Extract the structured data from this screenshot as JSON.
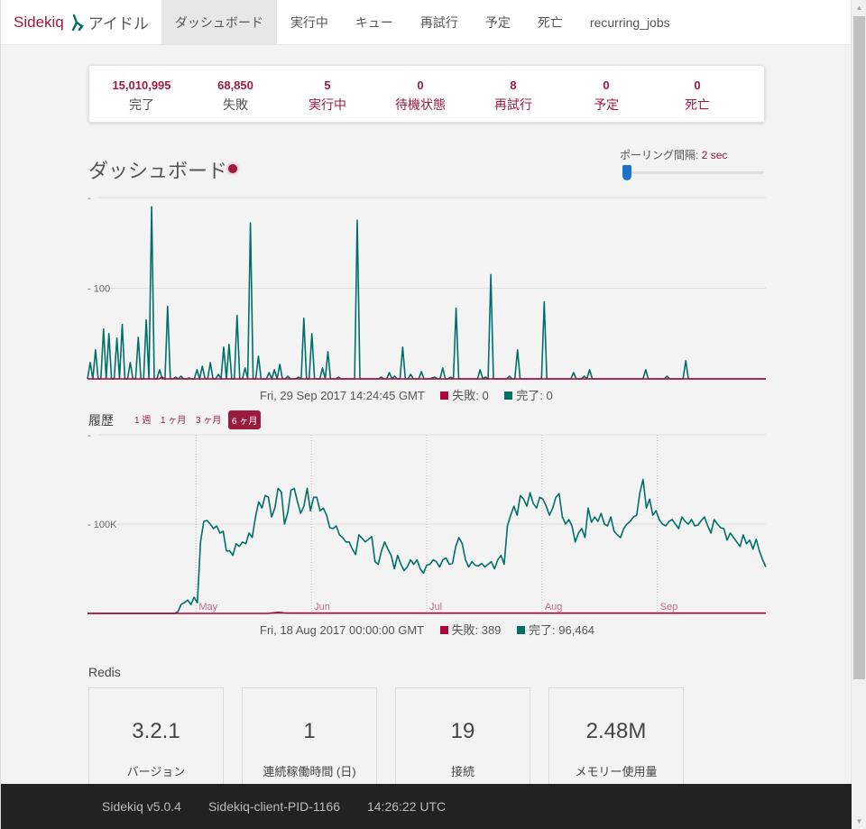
{
  "navbar": {
    "brand": "Sidekiq",
    "status": "アイドル",
    "items": [
      {
        "label": "ダッシュボード",
        "active": true
      },
      {
        "label": "実行中"
      },
      {
        "label": "キュー"
      },
      {
        "label": "再試行"
      },
      {
        "label": "予定"
      },
      {
        "label": "死亡"
      },
      {
        "label": "recurring_jobs"
      }
    ]
  },
  "summary": [
    {
      "value": "15,010,995",
      "label": "完了"
    },
    {
      "value": "68,850",
      "label": "失敗"
    },
    {
      "value": "5",
      "label": "実行中"
    },
    {
      "value": "0",
      "label": "待機状態"
    },
    {
      "value": "8",
      "label": "再試行"
    },
    {
      "value": "0",
      "label": "予定"
    },
    {
      "value": "0",
      "label": "死亡"
    }
  ],
  "dashboard": {
    "title": "ダッシュボード",
    "poll_label": "ポーリング間隔:",
    "poll_value": "2 sec",
    "poll_fraction": 0.0
  },
  "realtime_legend": {
    "time": "Fri, 29 Sep 2017 14:24:45 GMT",
    "failed_label": "失敗: 0",
    "processed_label": "完了: 0"
  },
  "history": {
    "label": "履歴",
    "ranges": [
      "1 週",
      "1 ヶ月",
      "3 ヶ月",
      "6 ヶ月"
    ],
    "active_range": "6 ヶ月",
    "legend_time": "Fri, 18 Aug 2017 00:00:00 GMT",
    "failed_label": "失敗: 389",
    "processed_label": "完了: 96,464"
  },
  "colors": {
    "accent": "#9b1b3f",
    "processed": "#006f68",
    "failed": "#b1003e"
  },
  "chart_data": [
    {
      "type": "line",
      "name": "realtime",
      "ytick_labels": [
        "-",
        "- 100"
      ],
      "yticks": [
        200,
        100
      ],
      "ylim": [
        0,
        200
      ],
      "grid": true,
      "series": [
        {
          "name": "完了",
          "color": "#006f68",
          "values": [
            0,
            18,
            0,
            32,
            0,
            0,
            55,
            0,
            50,
            0,
            0,
            45,
            0,
            60,
            0,
            0,
            18,
            0,
            0,
            46,
            0,
            0,
            65,
            0,
            190,
            0,
            0,
            10,
            0,
            0,
            80,
            0,
            0,
            2,
            0,
            3,
            0,
            0,
            1,
            0,
            0,
            10,
            0,
            14,
            0,
            0,
            18,
            0,
            0,
            5,
            0,
            35,
            0,
            38,
            0,
            0,
            70,
            0,
            0,
            12,
            0,
            172,
            0,
            0,
            25,
            0,
            0,
            0,
            7,
            0,
            10,
            0,
            16,
            0,
            0,
            3,
            0,
            0,
            0,
            2,
            0,
            67,
            0,
            0,
            50,
            0,
            0,
            0,
            12,
            0,
            30,
            0,
            0,
            0,
            2,
            0,
            0,
            0,
            0,
            0,
            0,
            175,
            0,
            0,
            0,
            0,
            0,
            0,
            0,
            0,
            2,
            0,
            0,
            7,
            0,
            3,
            0,
            0,
            35,
            0,
            0,
            5,
            0,
            0,
            0,
            8,
            0,
            0,
            0,
            1,
            2,
            0,
            0,
            12,
            0,
            0,
            2,
            0,
            78,
            0,
            0,
            0,
            0,
            0,
            0,
            0,
            0,
            10,
            0,
            2,
            0,
            115,
            0,
            0,
            0,
            0,
            0,
            0,
            3,
            0,
            0,
            32,
            0,
            0,
            0,
            0,
            0,
            0,
            0,
            0,
            0,
            85,
            0,
            0,
            0,
            0,
            0,
            0,
            0,
            0,
            0,
            0,
            7,
            0,
            0,
            0,
            3,
            0,
            10,
            0,
            0,
            0,
            0,
            0,
            0,
            0,
            0,
            0,
            0,
            0,
            0,
            0,
            0,
            0,
            0,
            0,
            0,
            0,
            0,
            10,
            0,
            0,
            0,
            0,
            0,
            0,
            0,
            3,
            0,
            0,
            0,
            0,
            0,
            0,
            20,
            0,
            0,
            0,
            0,
            0,
            0,
            0,
            0,
            0,
            0,
            0,
            0,
            0,
            0,
            0,
            0,
            0,
            0,
            0,
            0,
            0,
            0,
            0,
            0,
            0,
            0,
            0,
            0,
            0,
            0
          ]
        },
        {
          "name": "失敗",
          "color": "#b1003e",
          "values": [
            0,
            0,
            0,
            0,
            0,
            0,
            0,
            0,
            0,
            0,
            0,
            0,
            0,
            0,
            0,
            0,
            0,
            0,
            0,
            0,
            0,
            0,
            0,
            0,
            0,
            0,
            0,
            0,
            2,
            0,
            0,
            0,
            0,
            0,
            0,
            0,
            0,
            0,
            0,
            0,
            0,
            0,
            0,
            0,
            0,
            0,
            0,
            0,
            0,
            0,
            0,
            0,
            0,
            0,
            0,
            0,
            0,
            0,
            0,
            0,
            0,
            0,
            0,
            0,
            0,
            0,
            0,
            0,
            0,
            0,
            0,
            0,
            0,
            0,
            0,
            0,
            0,
            0,
            0,
            0,
            0,
            0,
            0,
            0,
            0,
            0,
            0,
            0,
            0,
            0,
            0,
            0,
            0,
            0,
            0,
            0,
            0,
            0,
            0,
            0,
            0,
            0,
            0,
            0,
            0,
            0,
            0,
            0,
            0,
            0,
            0,
            0,
            0,
            0,
            0,
            0,
            0,
            0,
            0,
            0,
            0,
            0,
            0,
            0,
            0,
            0,
            0,
            0,
            0,
            0,
            0,
            0,
            0,
            0,
            0,
            0,
            0,
            0,
            0,
            0,
            0,
            0,
            0,
            0,
            0,
            0,
            0,
            0,
            0,
            0,
            0,
            0,
            0,
            0,
            0,
            0,
            0,
            0,
            0,
            0,
            0,
            0,
            0,
            0,
            0,
            0,
            0,
            0,
            0,
            0,
            0,
            0,
            0,
            0,
            0,
            0,
            0,
            0,
            0,
            0,
            0,
            0,
            0,
            0,
            0,
            0,
            0,
            0,
            0,
            0,
            0,
            0,
            0,
            0,
            0,
            0,
            0,
            0,
            0,
            0,
            0,
            0,
            0,
            0,
            0,
            0,
            0,
            0,
            0,
            0,
            0,
            0,
            0,
            0,
            0,
            0,
            0,
            0,
            0,
            0,
            0,
            0,
            0,
            0,
            0,
            0,
            0,
            0,
            0,
            0,
            0,
            0,
            0,
            0,
            0,
            0,
            0,
            0,
            0,
            0,
            0,
            0,
            0,
            0,
            0,
            0,
            0,
            0,
            0,
            0,
            0,
            0,
            0,
            0,
            0,
            0
          ]
        }
      ]
    },
    {
      "type": "line",
      "name": "history",
      "ytick_labels": [
        "-",
        "- 100K"
      ],
      "yticks": [
        200000,
        100000
      ],
      "ylim": [
        0,
        200000
      ],
      "xtick_labels": [
        "May",
        "Jun",
        "Jul",
        "Aug",
        "Sep"
      ],
      "xtick_positions": [
        0.16,
        0.33,
        0.5,
        0.67,
        0.84
      ],
      "series": [
        {
          "name": "完了",
          "color": "#006f68",
          "values": [
            0,
            0,
            0,
            0,
            0,
            0,
            0,
            0,
            0,
            0,
            0,
            0,
            0,
            0,
            0,
            0,
            0,
            0,
            0,
            0,
            0,
            0,
            0,
            0,
            0,
            0,
            0,
            0,
            2000,
            10000,
            12000,
            15000,
            10000,
            18000,
            12000,
            80000,
            103000,
            104000,
            100000,
            95000,
            98000,
            90000,
            92000,
            70000,
            70000,
            65000,
            78000,
            75000,
            80000,
            78000,
            90000,
            85000,
            108000,
            125000,
            118000,
            132000,
            130000,
            108000,
            118000,
            140000,
            136000,
            100000,
            113000,
            138000,
            140000,
            125000,
            112000,
            120000,
            140000,
            115000,
            130000,
            130000,
            115000,
            118000,
            110000,
            96000,
            95000,
            98000,
            88000,
            85000,
            80000,
            80000,
            72000,
            66000,
            88000,
            84000,
            80000,
            83000,
            86000,
            58000,
            55000,
            70000,
            80000,
            72000,
            65000,
            50000,
            65000,
            55000,
            48000,
            52000,
            60000,
            55000,
            60000,
            50000,
            45000,
            54000,
            55000,
            60000,
            58000,
            52000,
            60000,
            62000,
            55000,
            56000,
            75000,
            85000,
            78000,
            60000,
            52000,
            58000,
            54000,
            53000,
            56000,
            52000,
            55000,
            58000,
            50000,
            60000,
            65000,
            55000,
            98000,
            110000,
            120000,
            110000,
            132000,
            128000,
            120000,
            135000,
            123000,
            118000,
            130000,
            128000,
            120000,
            110000,
            118000,
            130000,
            134000,
            108000,
            100000,
            105000,
            98000,
            80000,
            90000,
            95000,
            85000,
            118000,
            102000,
            108000,
            103000,
            112000,
            100000,
            98000,
            108000,
            92000,
            88000,
            85000,
            95000,
            100000,
            103000,
            108000,
            110000,
            135000,
            150000,
            118000,
            128000,
            110000,
            115000,
            105000,
            100000,
            98000,
            103000,
            105000,
            100000,
            95000,
            108000,
            103000,
            100000,
            105000,
            98000,
            99000,
            104000,
            108000,
            98000,
            90000,
            105000,
            100000,
            96000,
            95000,
            82000,
            90000,
            85000,
            80000,
            75000,
            88000,
            78000,
            82000,
            72000,
            83000,
            70000,
            60000,
            52000
          ]
        },
        {
          "name": "失敗",
          "color": "#b1003e",
          "values": [
            0,
            0,
            0,
            0,
            0,
            0,
            0,
            0,
            0,
            0,
            0,
            0,
            0,
            0,
            0,
            0,
            0,
            0,
            0,
            0,
            0,
            0,
            0,
            0,
            0,
            0,
            0,
            0,
            0,
            0,
            0,
            0,
            0,
            0,
            0,
            0,
            0,
            0,
            0,
            0,
            0,
            0,
            0,
            0,
            0,
            0,
            0,
            0,
            0,
            0,
            0,
            0,
            0,
            0,
            0,
            0,
            0,
            0,
            0,
            0,
            500,
            800,
            1200,
            1000,
            600,
            400,
            300,
            300,
            300,
            300,
            300,
            300,
            300,
            300,
            300,
            300,
            300,
            300,
            300,
            300,
            300,
            300,
            300,
            300,
            300,
            300,
            300,
            300,
            300,
            300,
            300,
            300,
            300,
            300,
            300,
            300,
            300,
            300,
            300,
            300,
            300,
            300,
            300,
            300,
            300,
            300,
            300,
            300,
            300,
            300,
            300,
            300,
            300,
            300,
            300,
            300,
            300,
            300,
            300,
            300,
            300,
            300,
            300,
            300,
            300,
            300,
            300,
            300,
            300,
            300,
            300,
            300,
            300,
            300,
            300,
            300,
            300,
            300,
            300,
            300,
            300,
            300,
            300,
            300,
            300,
            300,
            300,
            300,
            300,
            300,
            300,
            300,
            300,
            300,
            300,
            300,
            300,
            300,
            300,
            300,
            300,
            300,
            300,
            300,
            300,
            300,
            300,
            300,
            300,
            300,
            300,
            300,
            300,
            300,
            300,
            300,
            300,
            300,
            300,
            300,
            300,
            300,
            300,
            300,
            300,
            300,
            300,
            300,
            300,
            300,
            300,
            300,
            300,
            300,
            300,
            300,
            300,
            300,
            300,
            300,
            300,
            300,
            300,
            300,
            300,
            300,
            300,
            300,
            300,
            300,
            300,
            300,
            300,
            300,
            300,
            300,
            300,
            300,
            300,
            300,
            300,
            300
          ]
        }
      ]
    }
  ],
  "redis": {
    "label": "Redis",
    "boxes": [
      {
        "value": "3.2.1",
        "label": "バージョン"
      },
      {
        "value": "1",
        "label": "連続稼働時間 (日)"
      },
      {
        "value": "19",
        "label": "接続"
      },
      {
        "value": "2.48M",
        "label": "メモリー使用量"
      }
    ]
  },
  "footer": {
    "version": "Sidekiq v5.0.4",
    "client": "Sidekiq-client-PID-1166",
    "time": "14:26:22 UTC"
  }
}
